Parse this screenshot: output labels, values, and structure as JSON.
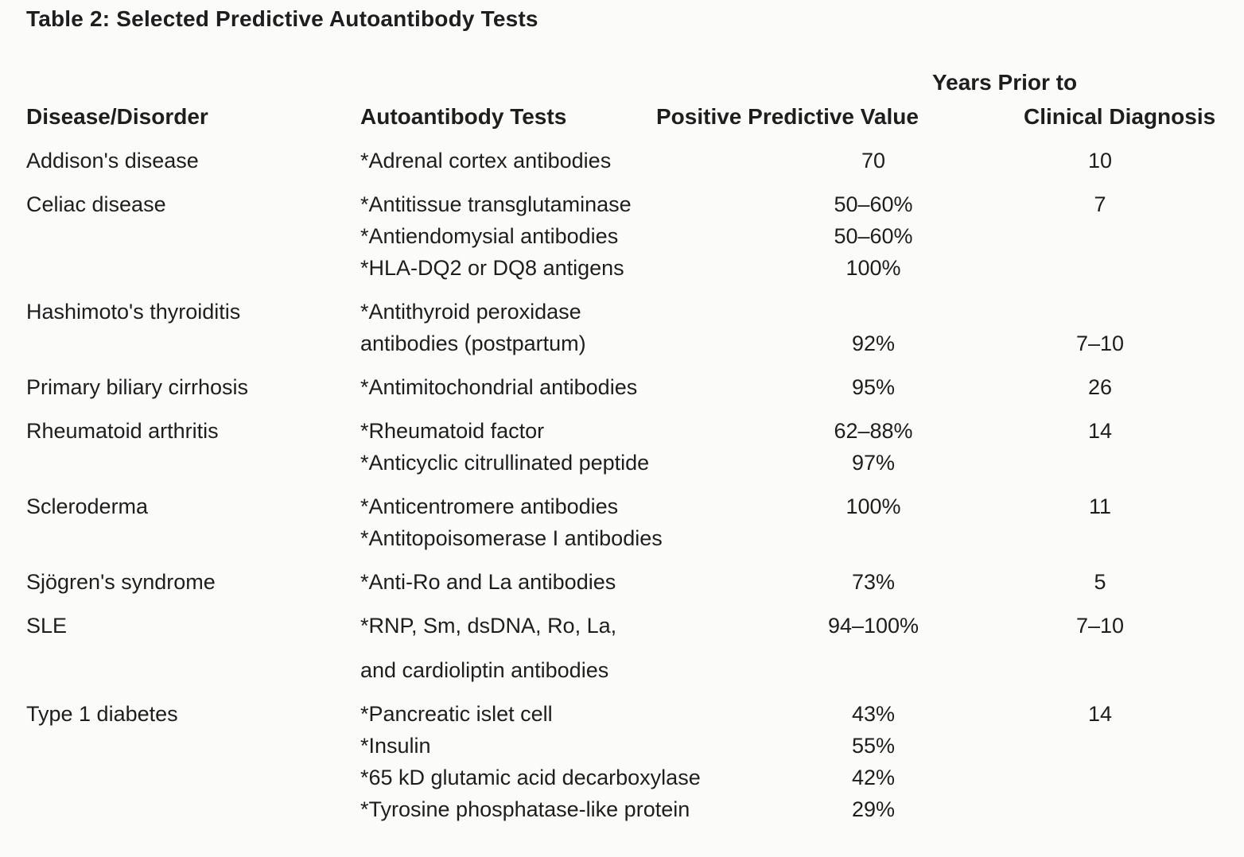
{
  "title": "Table 2: Selected Predictive Autoantibody Tests",
  "table": {
    "headers": {
      "disease": "Disease/Disorder",
      "tests": "Autoantibody Tests",
      "ppv": "Positive Predictive Value",
      "years_line1": "Years Prior to",
      "years_line2": "Clinical Diagnosis"
    },
    "rows": [
      {
        "disease": "Addison's disease",
        "lines": [
          {
            "test": "*Adrenal cortex antibodies",
            "ppv": "70",
            "years": "10"
          }
        ]
      },
      {
        "disease": "Celiac disease",
        "lines": [
          {
            "test": "*Antitissue transglutaminase",
            "ppv": "50–60%",
            "years": "7"
          },
          {
            "test": "*Antiendomysial antibodies",
            "ppv": "50–60%"
          },
          {
            "test": "*HLA-DQ2 or DQ8 antigens",
            "ppv": "100%"
          }
        ]
      },
      {
        "disease": "Hashimoto's thyroiditis",
        "lines": [
          {
            "test": "*Antithyroid peroxidase"
          },
          {
            "test": "antibodies (postpartum)",
            "ppv": "92%",
            "years": "7–10"
          }
        ]
      },
      {
        "disease": "Primary biliary cirrhosis",
        "lines": [
          {
            "test": "*Antimitochondrial antibodies",
            "ppv": "95%",
            "years": "26"
          }
        ]
      },
      {
        "disease": "Rheumatoid arthritis",
        "lines": [
          {
            "test": "*Rheumatoid factor",
            "ppv": "62–88%",
            "years": "14"
          },
          {
            "test": "*Anticyclic citrullinated peptide",
            "ppv": "97%"
          }
        ]
      },
      {
        "disease": "Scleroderma",
        "lines": [
          {
            "test": "*Anticentromere antibodies",
            "ppv": "100%",
            "years": "11"
          },
          {
            "test": "*Antitopoisomerase I antibodies"
          }
        ]
      },
      {
        "disease": "Sjögren's syndrome",
        "lines": [
          {
            "test": "*Anti-Ro and La antibodies",
            "ppv": "73%",
            "years": "5"
          }
        ]
      },
      {
        "disease": "SLE",
        "lines": [
          {
            "test": "*RNP, Sm, dsDNA, Ro, La,",
            "ppv": "94–100%",
            "years": "7–10"
          },
          {
            "test": "and cardioliptin antibodies"
          }
        ]
      },
      {
        "disease": "Type 1 diabetes",
        "lines": [
          {
            "test": "*Pancreatic islet cell",
            "ppv": "43%",
            "years": "14"
          },
          {
            "test": "*Insulin",
            "ppv": "55%"
          },
          {
            "test": "*65 kD glutamic acid decarboxylase",
            "ppv": "42%"
          },
          {
            "test": "*Tyrosine phosphatase-like protein",
            "ppv": "29%"
          }
        ]
      }
    ]
  }
}
